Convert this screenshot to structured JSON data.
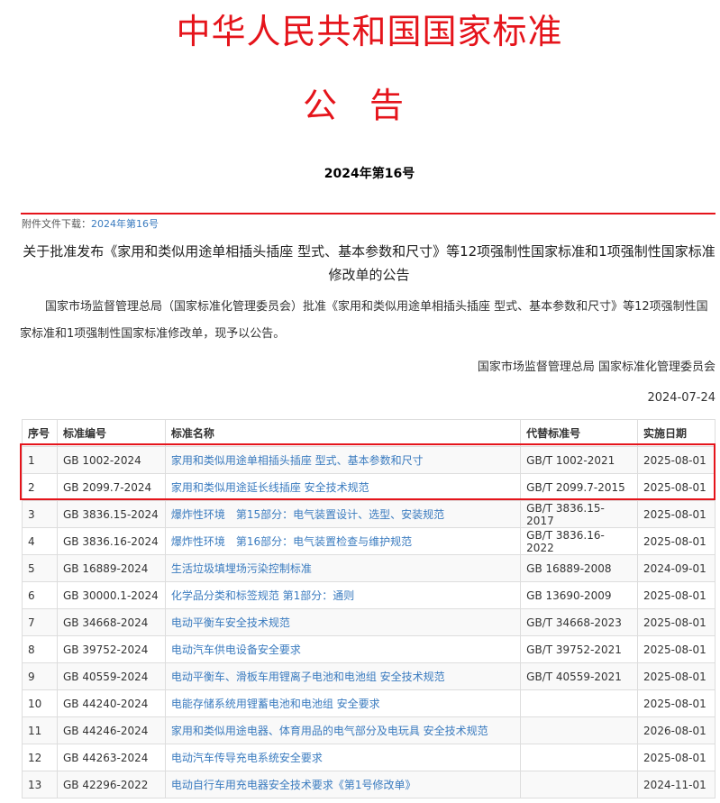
{
  "header": {
    "title": "中华人民共和国国家标准",
    "subtitle": "公告",
    "number": "2024年第16号"
  },
  "attachment": {
    "label": "附件文件下载：",
    "link": "2024年第16号"
  },
  "notice": {
    "heading": "关于批准发布《家用和类似用途单相插头插座 型式、基本参数和尺寸》等12项强制性国家标准和1项强制性国家标准修改单的公告",
    "body": "国家市场监督管理总局（国家标准化管理委员会）批准《家用和类似用途单相插头插座 型式、基本参数和尺寸》等12项强制性国家标准和1项强制性国家标准修改单，现予以公告。",
    "signature": "国家市场监督管理总局 国家标准化管理委员会",
    "date": "2024-07-24"
  },
  "table": {
    "headers": [
      "序号",
      "标准编号",
      "标准名称",
      "代替标准号",
      "实施日期"
    ],
    "rows": [
      [
        "1",
        "GB 1002-2024",
        "家用和类似用途单相插头插座 型式、基本参数和尺寸",
        "GB/T 1002-2021",
        "2025-08-01"
      ],
      [
        "2",
        "GB 2099.7-2024",
        "家用和类似用途延长线插座 安全技术规范",
        "GB/T 2099.7-2015",
        "2025-08-01"
      ],
      [
        "3",
        "GB 3836.15-2024",
        "爆炸性环境　第15部分：电气装置设计、选型、安装规范",
        "GB/T 3836.15-2017",
        "2025-08-01"
      ],
      [
        "4",
        "GB 3836.16-2024",
        "爆炸性环境　第16部分：电气装置检查与维护规范",
        "GB/T 3836.16-2022",
        "2025-08-01"
      ],
      [
        "5",
        "GB 16889-2024",
        "生活垃圾填埋场污染控制标准",
        "GB 16889-2008",
        "2024-09-01"
      ],
      [
        "6",
        "GB 30000.1-2024",
        "化学品分类和标签规范 第1部分：通则",
        "GB 13690-2009",
        "2025-08-01"
      ],
      [
        "7",
        "GB 34668-2024",
        "电动平衡车安全技术规范",
        "GB/T 34668-2023",
        "2025-08-01"
      ],
      [
        "8",
        "GB 39752-2024",
        "电动汽车供电设备安全要求",
        "GB/T 39752-2021",
        "2025-08-01"
      ],
      [
        "9",
        "GB 40559-2024",
        "电动平衡车、滑板车用锂离子电池和电池组 安全技术规范",
        "GB/T 40559-2021",
        "2025-08-01"
      ],
      [
        "10",
        "GB 44240-2024",
        "电能存储系统用锂蓄电池和电池组 安全要求",
        "",
        "2025-08-01"
      ],
      [
        "11",
        "GB 44246-2024",
        "家用和类似用途电器、体育用品的电气部分及电玩具 安全技术规范",
        "",
        "2026-08-01"
      ],
      [
        "12",
        "GB 44263-2024",
        "电动汽车传导充电系统安全要求",
        "",
        "2025-08-01"
      ],
      [
        "13",
        "GB 42296-2022",
        "电动自行车用充电器安全技术要求《第1号修改单》",
        "",
        "2024-11-01"
      ]
    ]
  },
  "colors": {
    "accent": "#e5141b",
    "link": "#3a7bbf"
  }
}
